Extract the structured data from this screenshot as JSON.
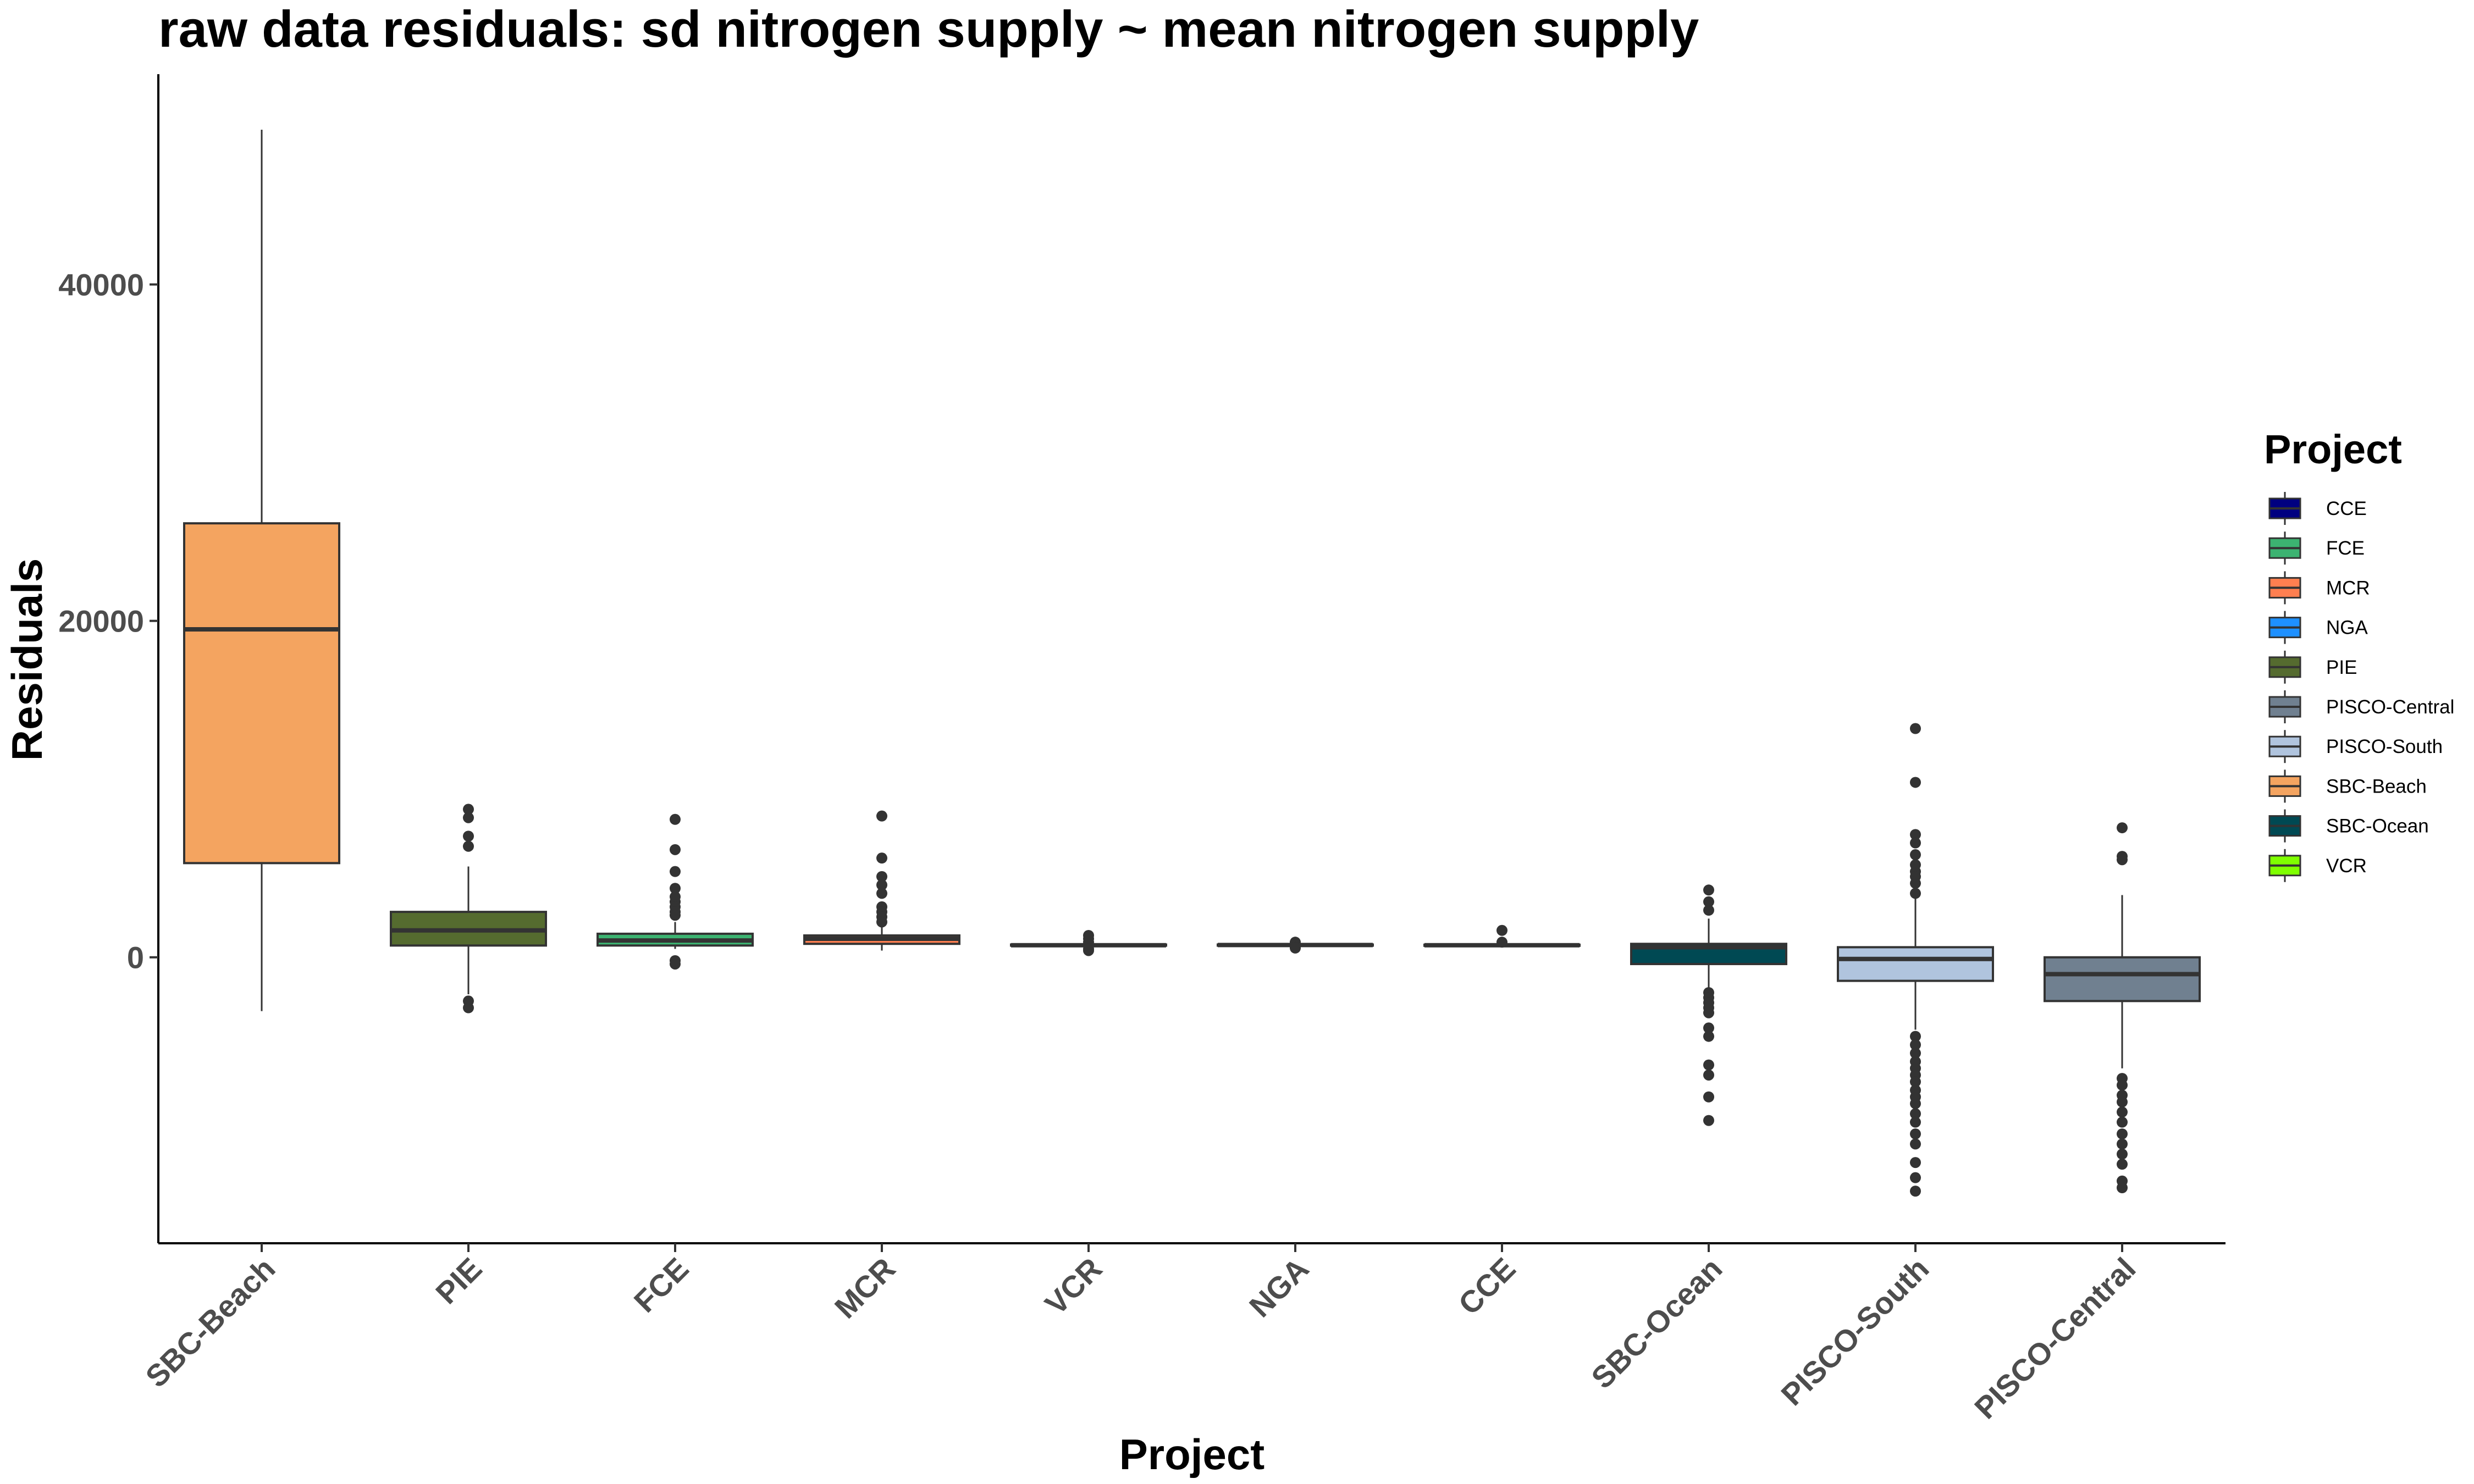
{
  "chart_data": {
    "type": "boxplot",
    "title": "raw data residuals: sd nitrogen supply ~ mean nitrogen supply",
    "xlabel": "Project",
    "ylabel": "Residuals",
    "ylim": [
      -17000,
      52500
    ],
    "yticks": [
      0,
      20000,
      40000
    ],
    "ytick_labels": [
      "0",
      "20000",
      "40000"
    ],
    "grid": false,
    "legend_position": "right",
    "legend": {
      "title": "Project",
      "entries": [
        {
          "name": "CCE",
          "color": "#000080"
        },
        {
          "name": "FCE",
          "color": "#3cb371"
        },
        {
          "name": "MCR",
          "color": "#ff7f50"
        },
        {
          "name": "NGA",
          "color": "#1e90ff"
        },
        {
          "name": "PIE",
          "color": "#556b2f"
        },
        {
          "name": "PISCO-Central",
          "color": "#708090"
        },
        {
          "name": "PISCO-South",
          "color": "#b0c4de"
        },
        {
          "name": "SBC-Beach",
          "color": "#f4a460"
        },
        {
          "name": "SBC-Ocean",
          "color": "#004953"
        },
        {
          "name": "VCR",
          "color": "#7fff00"
        }
      ]
    },
    "boxes": [
      {
        "category": "SBC-Beach",
        "color": "#f4a460",
        "min": -3200,
        "q1": 5600,
        "median": 19500,
        "q3": 25800,
        "max": 49200,
        "outliers": []
      },
      {
        "category": "PIE",
        "color": "#556b2f",
        "min": -2200,
        "q1": 700,
        "median": 1600,
        "q3": 2700,
        "max": 5400,
        "outliers": [
          8800,
          8300,
          7200,
          6600,
          -2600,
          -3000
        ]
      },
      {
        "category": "FCE",
        "color": "#3cb371",
        "min": 500,
        "q1": 700,
        "median": 1000,
        "q3": 1400,
        "max": 2100,
        "outliers": [
          8200,
          6400,
          5100,
          4100,
          3600,
          3300,
          3000,
          2700,
          2500,
          -200,
          -400
        ]
      },
      {
        "category": "MCR",
        "color": "#ff7f50",
        "min": 400,
        "q1": 800,
        "median": 1100,
        "q3": 1300,
        "max": 1900,
        "outliers": [
          8400,
          5900,
          4800,
          4300,
          3800,
          3000,
          2700,
          2400,
          2100
        ]
      },
      {
        "category": "VCR",
        "color": "#7fff00",
        "min": 550,
        "q1": 700,
        "median": 720,
        "q3": 760,
        "max": 900,
        "outliers": [
          1300,
          1100,
          900,
          500,
          400
        ]
      },
      {
        "category": "NGA",
        "color": "#1e90ff",
        "min": 600,
        "q1": 700,
        "median": 730,
        "q3": 760,
        "max": 850,
        "outliers": [
          900,
          800,
          600,
          550
        ]
      },
      {
        "category": "CCE",
        "color": "#000080",
        "min": 650,
        "q1": 700,
        "median": 720,
        "q3": 750,
        "max": 800,
        "outliers": [
          1600,
          900
        ]
      },
      {
        "category": "SBC-Ocean",
        "color": "#004953",
        "min": -1900,
        "q1": -400,
        "median": 600,
        "q3": 800,
        "max": 2300,
        "outliers": [
          4000,
          3300,
          2800,
          -2100,
          -2400,
          -2700,
          -3000,
          -3300,
          -4200,
          -4700,
          -6400,
          -7000,
          -8300,
          -9700
        ]
      },
      {
        "category": "PISCO-South",
        "color": "#b0c4de",
        "min": -4300,
        "q1": -1400,
        "median": -100,
        "q3": 600,
        "max": 3600,
        "outliers": [
          13600,
          10400,
          7300,
          6800,
          6100,
          5500,
          5100,
          4800,
          4400,
          3800,
          -4700,
          -5200,
          -5700,
          -6200,
          -6600,
          -7000,
          -7400,
          -7900,
          -8300,
          -8700,
          -9300,
          -9800,
          -10500,
          -11100,
          -12200,
          -13100,
          -13900
        ]
      },
      {
        "category": "PISCO-Central",
        "color": "#708090",
        "min": -6600,
        "q1": -2600,
        "median": -1000,
        "q3": 0,
        "max": 3700,
        "outliers": [
          7700,
          6000,
          5800,
          -7200,
          -7600,
          -8200,
          -8600,
          -9200,
          -9800,
          -10500,
          -11100,
          -11700,
          -12300,
          -13300,
          -13700
        ]
      }
    ]
  }
}
